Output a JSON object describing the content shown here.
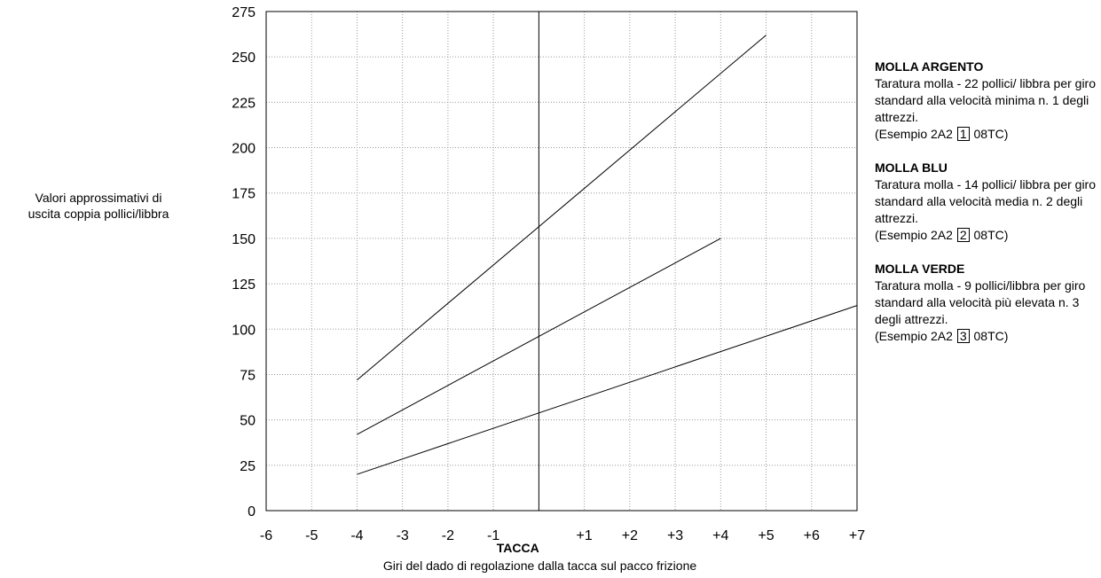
{
  "chart_data": {
    "type": "line",
    "xlabel_title": "TACCA",
    "xlabel": "Giri del dado di regolazione dalla tacca sul pacco frizione",
    "ylabel_lines": [
      "Valori approssimativi di",
      "uscita coppia pollici/libbra"
    ],
    "x_ticks": [
      "-6",
      "-5",
      "-4",
      "-3",
      "-2",
      "-1",
      "+1",
      "+2",
      "+3",
      "+4",
      "+5",
      "+6",
      "+7"
    ],
    "x_tick_values": [
      -6,
      -5,
      -4,
      -3,
      -2,
      -1,
      1,
      2,
      3,
      4,
      5,
      6,
      7
    ],
    "xlim": [
      -6,
      7
    ],
    "ylim": [
      0,
      275
    ],
    "y_ticks": [
      0,
      25,
      50,
      75,
      100,
      125,
      150,
      175,
      200,
      225,
      250,
      275
    ],
    "grid": true,
    "series": [
      {
        "x": [
          -4,
          5
        ],
        "y": [
          72,
          262
        ]
      },
      {
        "x": [
          -4,
          4
        ],
        "y": [
          42,
          150
        ]
      },
      {
        "x": [
          -4,
          7
        ],
        "y": [
          20,
          113
        ]
      }
    ]
  },
  "legend": [
    {
      "title": "MOLLA ARGENTO",
      "desc": "Taratura molla - 22 pollici/ libbra per giro standard alla velocità minima n. 1 degli attrezzi.",
      "example_prefix": "(Esempio 2A2",
      "example_box": "1",
      "example_suffix": "08TC)"
    },
    {
      "title": "MOLLA BLU",
      "desc": "Taratura molla - 14 pollici/ libbra per giro standard alla velocità media n. 2 degli attrezzi.",
      "example_prefix": "(Esempio 2A2",
      "example_box": "2",
      "example_suffix": "08TC)"
    },
    {
      "title": "MOLLA VERDE",
      "desc": "Taratura molla - 9 pollici/libbra per giro standard alla velocità più elevata n. 3 degli attrezzi.",
      "example_prefix": "(Esempio 2A2",
      "example_box": "3",
      "example_suffix": "08TC)"
    }
  ]
}
